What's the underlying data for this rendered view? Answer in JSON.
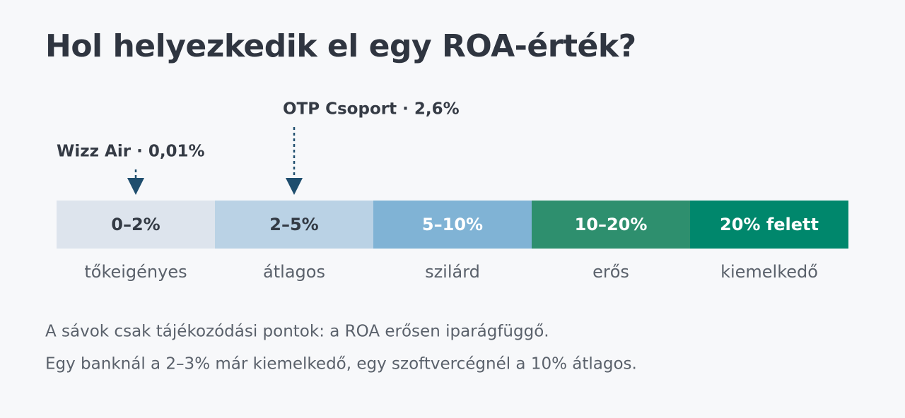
{
  "header": {
    "title": "Hol helyezkedik el egy ROA-érték?"
  },
  "markers": [
    {
      "label": "Wizz Air · 0,01%"
    },
    {
      "label": "OTP Csoport · 2,6%"
    }
  ],
  "bands": [
    {
      "range": "0–2%",
      "description": "tőkeigényes",
      "color": "#dde4ed"
    },
    {
      "range": "2–5%",
      "description": "átlagos",
      "color": "#bad2e5"
    },
    {
      "range": "5–10%",
      "description": "szilárd",
      "color": "#80b3d5"
    },
    {
      "range": "10–20%",
      "description": "erős",
      "color": "#2e8f6e"
    },
    {
      "range": "20% felett",
      "description": "kiemelkedő",
      "color": "#00876c"
    }
  ],
  "footer": {
    "lines": [
      "A sávok csak tájékozódási pontok: a ROA erősen iparágfüggő.",
      "Egy banknál a 2–3% már kiemelkedő, egy szoftvercégnél a 10% átlagos."
    ]
  }
}
